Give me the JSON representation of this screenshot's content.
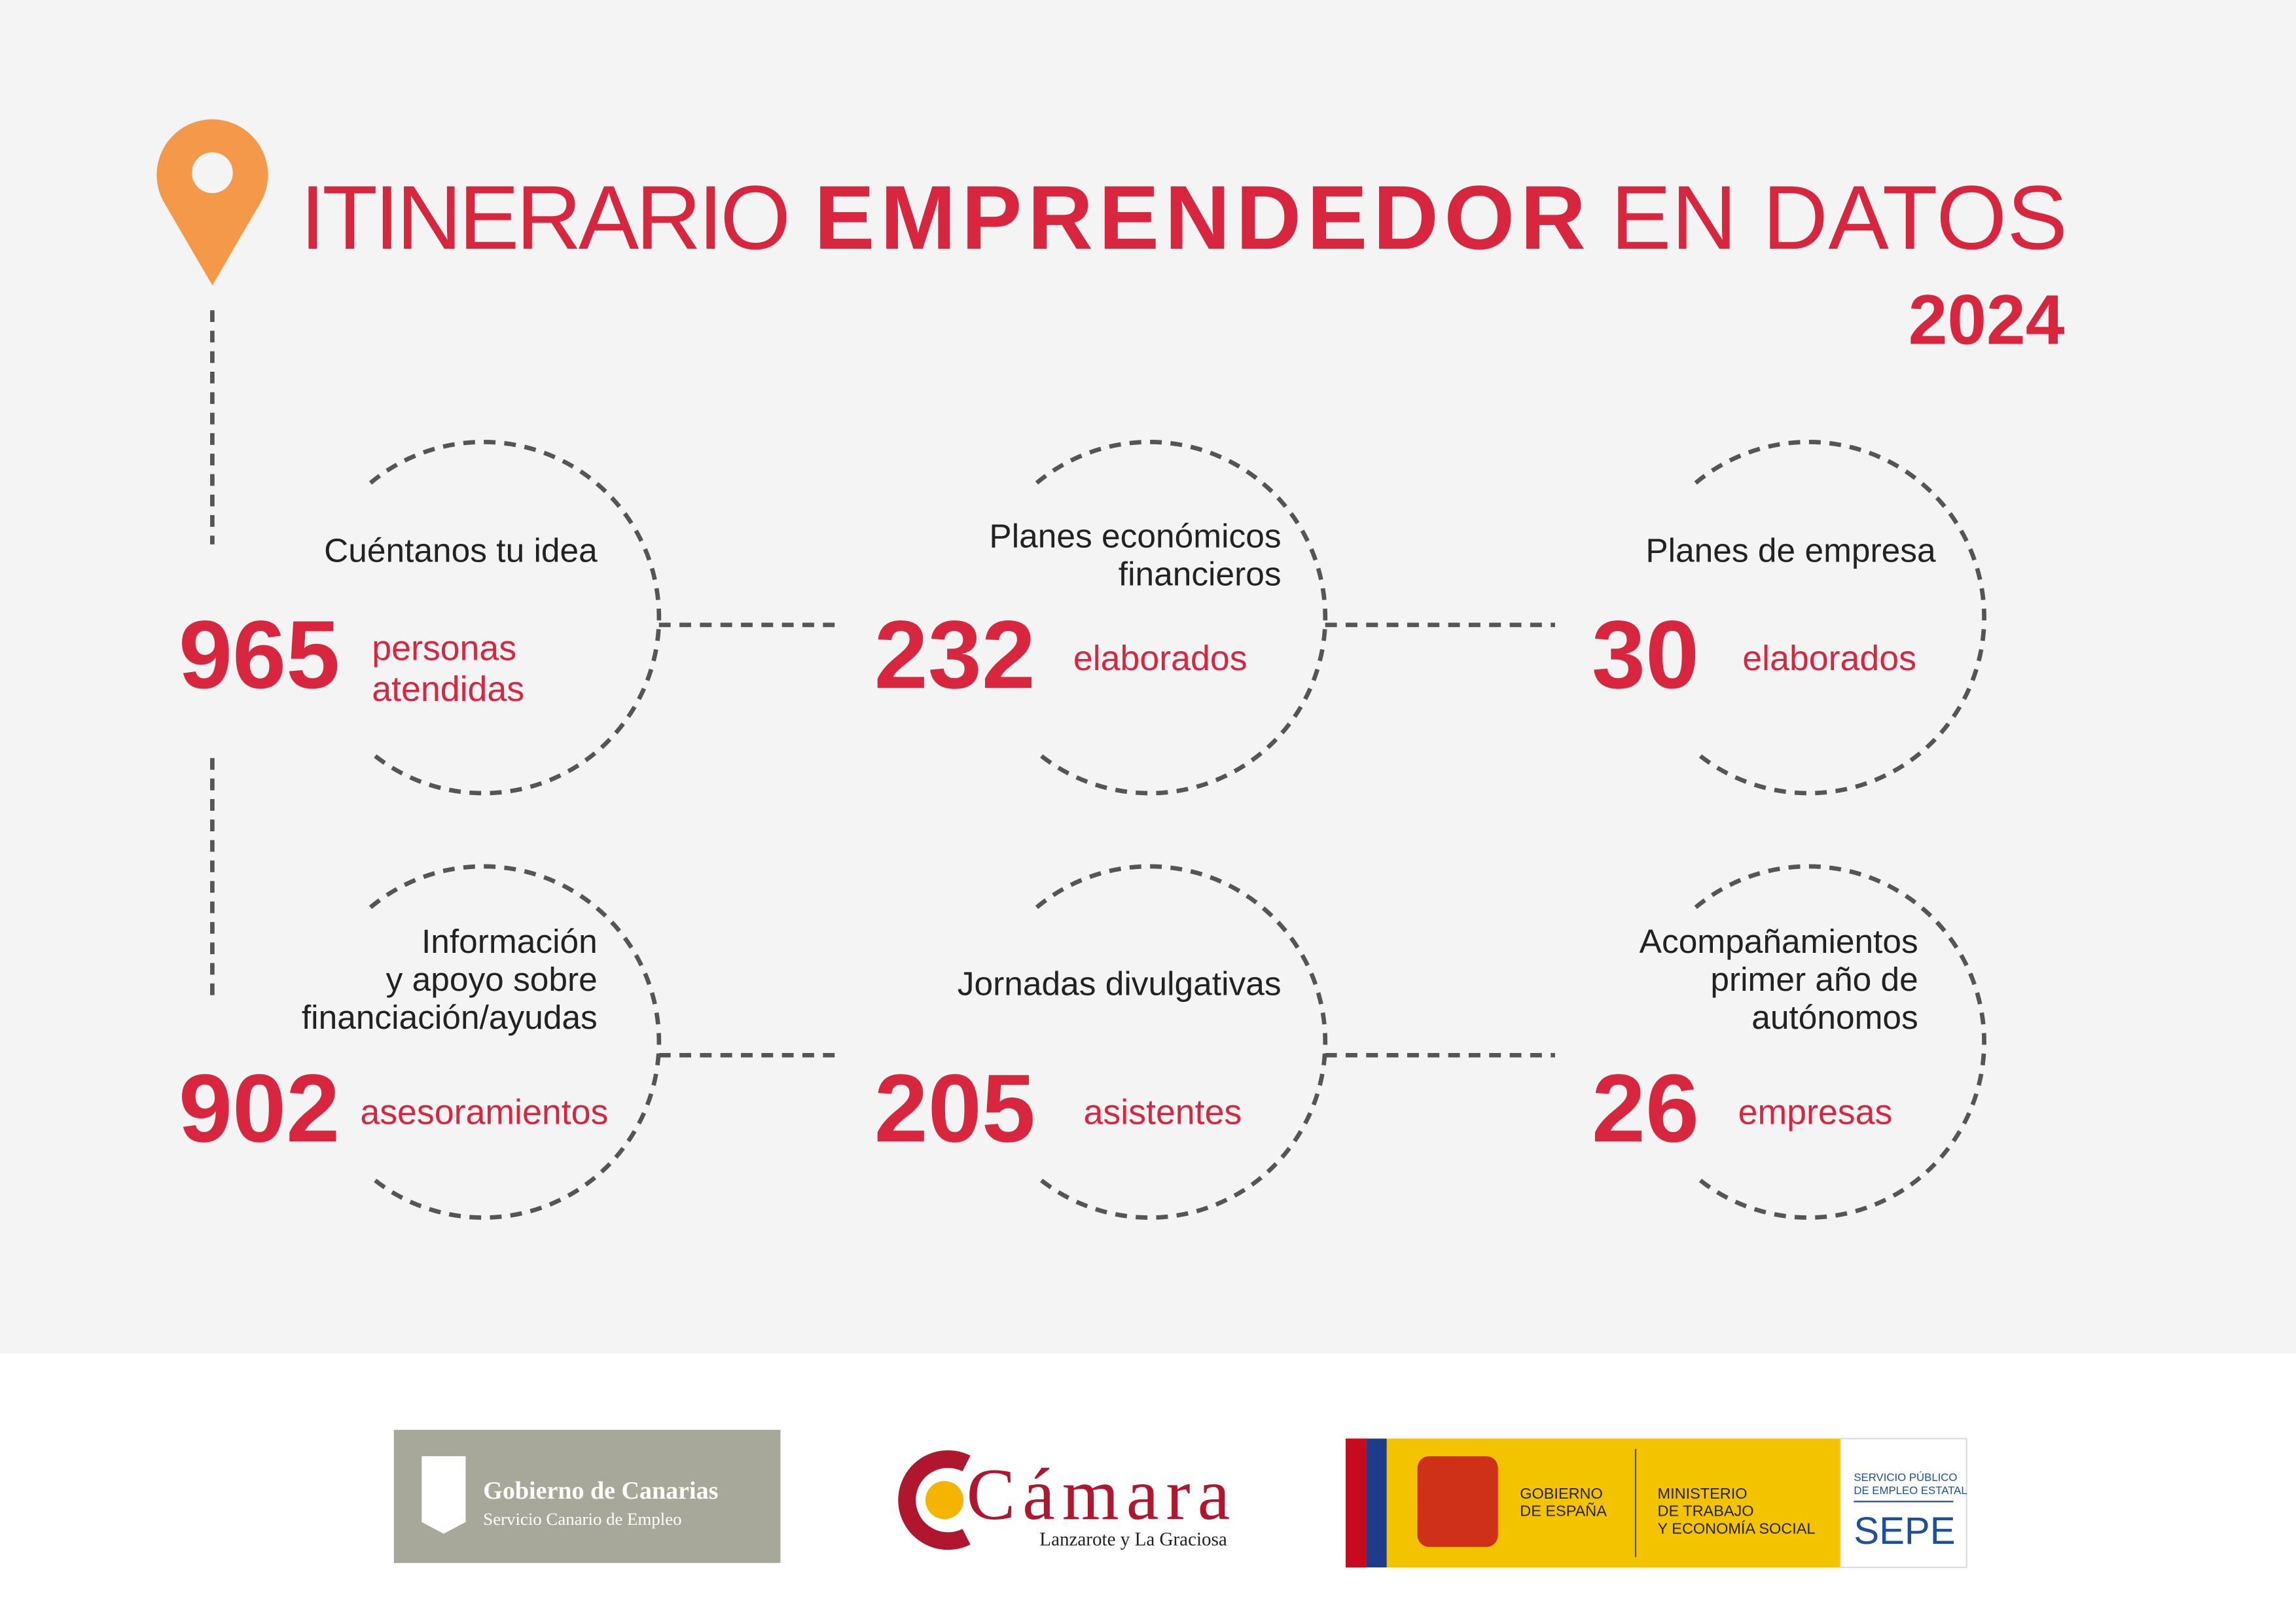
{
  "header": {
    "title_prefix": "ITINERARIO",
    "title_bold": "EMPRENDEDOR",
    "title_suffix": "EN DATOS",
    "year": "2024"
  },
  "items": [
    {
      "label": [
        "Cuéntanos tu idea"
      ],
      "number": 965,
      "unit": [
        "personas",
        "atendidas"
      ]
    },
    {
      "label": [
        "Planes económicos",
        "financieros"
      ],
      "number": 232,
      "unit": [
        "elaborados"
      ]
    },
    {
      "label": [
        "Planes de empresa"
      ],
      "number": 30,
      "unit": [
        "elaborados"
      ]
    },
    {
      "label": [
        "Información",
        "y apoyo sobre",
        "financiación/ayudas"
      ],
      "number": 902,
      "unit": [
        "asesoramientos"
      ]
    },
    {
      "label": [
        "Jornadas divulgativas"
      ],
      "number": 205,
      "unit": [
        "asistentes"
      ]
    },
    {
      "label": [
        "Acompañamientos",
        "primer año de",
        "autónomos"
      ],
      "number": 26,
      "unit": [
        "empresas"
      ]
    }
  ],
  "footer": {
    "gobierno": {
      "name": "Gobierno de Canarias",
      "sub": "Servicio Canario de Empleo"
    },
    "camara": {
      "name": "Cámara",
      "sub": "Lanzarote y La Graciosa"
    },
    "ministerio": {
      "gobierno": [
        "GOBIERNO",
        "DE ESPAÑA"
      ],
      "ministerio": [
        "MINISTERIO",
        "DE TRABAJO",
        "Y ECONOMÍA SOCIAL"
      ],
      "sepe_sub": [
        "SERVICIO PÚBLICO",
        "DE EMPLEO ESTATAL"
      ],
      "sepe": "SEPE"
    }
  }
}
